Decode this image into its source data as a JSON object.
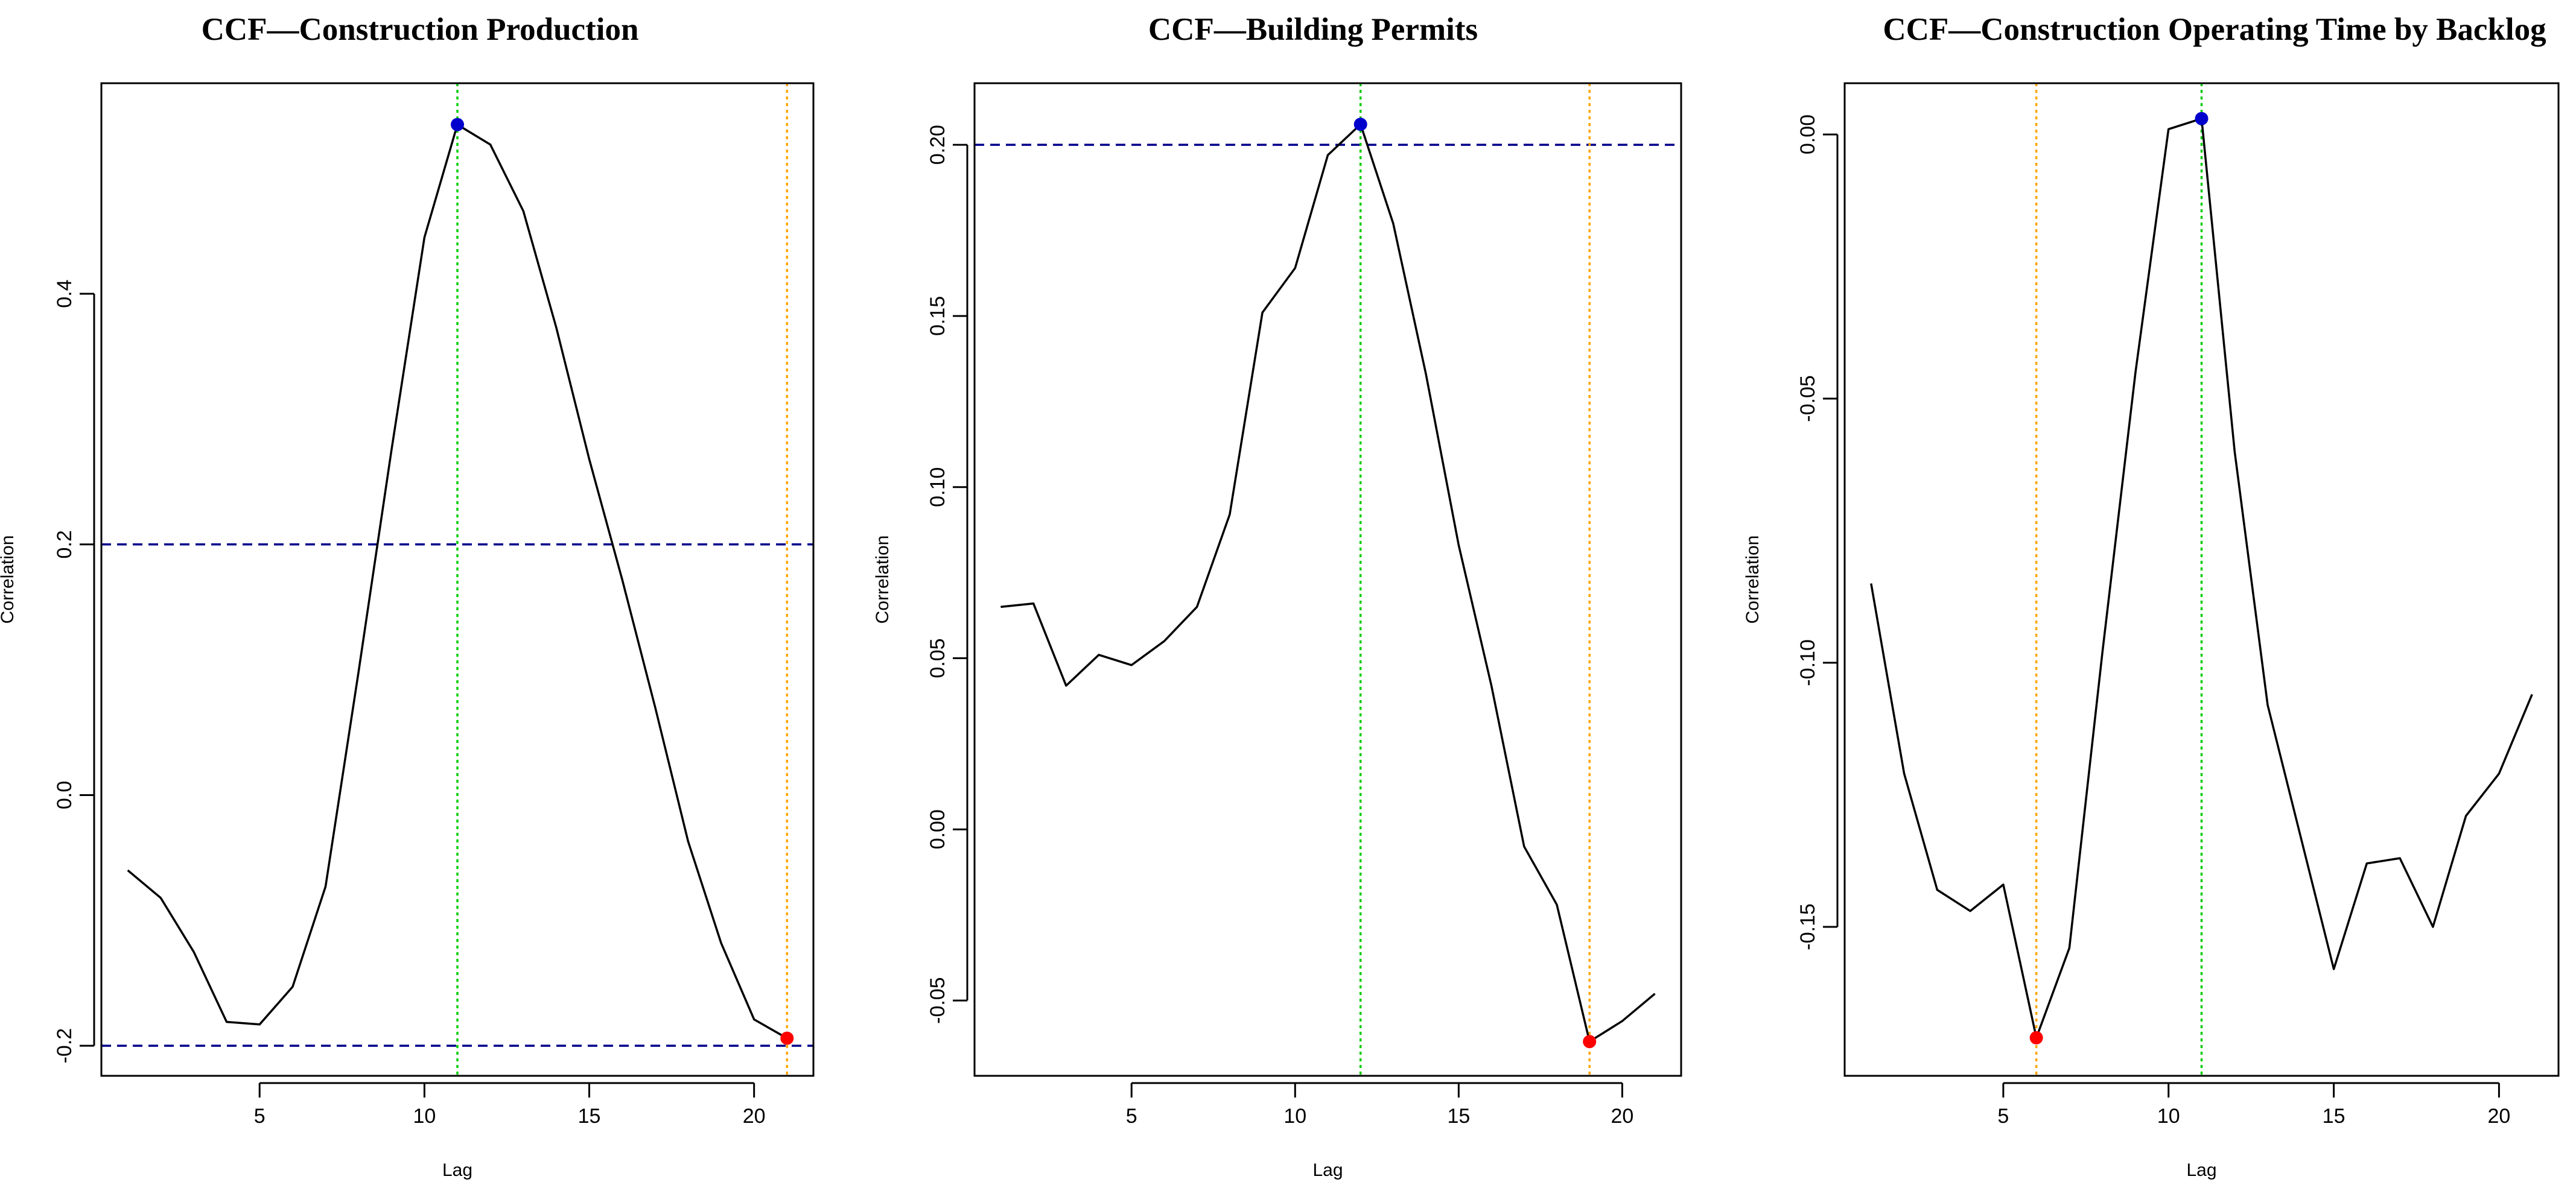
{
  "chart_data": [
    {
      "type": "line",
      "title": "CCF—Construction Production",
      "xlabel": "Lag",
      "ylabel": "Correlation",
      "xlim": [
        0.2,
        21.8
      ],
      "ylim": [
        -0.224,
        0.568
      ],
      "xticks": [
        5,
        10,
        15,
        20
      ],
      "yticks": [
        -0.2,
        0.0,
        0.2,
        0.4
      ],
      "ytick_labels": [
        "-0.2",
        "0.0",
        "0.2",
        "0.4"
      ],
      "x": [
        1,
        2,
        3,
        4,
        5,
        6,
        7,
        8,
        9,
        10,
        11,
        12,
        13,
        14,
        15,
        16,
        17,
        18,
        19,
        20,
        21
      ],
      "values": [
        -0.06,
        -0.082,
        -0.125,
        -0.181,
        -0.183,
        -0.153,
        -0.073,
        0.098,
        0.275,
        0.445,
        0.535,
        0.519,
        0.466,
        0.373,
        0.268,
        0.172,
        0.07,
        -0.037,
        -0.118,
        -0.179,
        -0.194
      ],
      "hlines": [
        0.2,
        -0.2
      ],
      "max_point": {
        "x": 11,
        "y": 0.535
      },
      "min_point": {
        "x": 21,
        "y": -0.194
      },
      "max_lag_line": 11,
      "min_lag_line": 21,
      "colors": {
        "line": "#000000",
        "hline": "#00008B",
        "max": "#0000CD",
        "min": "#FF0000",
        "max_vline": "#00CD00",
        "min_vline": "#FFA500"
      }
    },
    {
      "type": "line",
      "title": "CCF—Building Permits",
      "xlabel": "Lag",
      "ylabel": "Correlation",
      "xlim": [
        0.2,
        21.8
      ],
      "ylim": [
        -0.072,
        0.218
      ],
      "xticks": [
        5,
        10,
        15,
        20
      ],
      "yticks": [
        -0.05,
        0.0,
        0.05,
        0.1,
        0.15,
        0.2
      ],
      "ytick_labels": [
        "-0.05",
        "0.00",
        "0.05",
        "0.10",
        "0.15",
        "0.20"
      ],
      "x": [
        1,
        2,
        3,
        4,
        5,
        6,
        7,
        8,
        9,
        10,
        11,
        12,
        13,
        14,
        15,
        16,
        17,
        18,
        19,
        20,
        21
      ],
      "values": [
        0.065,
        0.066,
        0.042,
        0.051,
        0.048,
        0.055,
        0.065,
        0.092,
        0.151,
        0.164,
        0.197,
        0.206,
        0.177,
        0.133,
        0.083,
        0.042,
        -0.005,
        -0.022,
        -0.062,
        -0.056,
        -0.048
      ],
      "hlines": [
        0.2
      ],
      "max_point": {
        "x": 12,
        "y": 0.206
      },
      "min_point": {
        "x": 19,
        "y": -0.062
      },
      "max_lag_line": 12,
      "min_lag_line": 19,
      "colors": {
        "line": "#000000",
        "hline": "#00008B",
        "max": "#0000CD",
        "min": "#FF0000",
        "max_vline": "#00CD00",
        "min_vline": "#FFA500"
      }
    },
    {
      "type": "line",
      "title": "CCF—Construction Operating Time by Backlog",
      "xlabel": "Lag",
      "ylabel": "Correlation",
      "xlim": [
        0.2,
        21.8
      ],
      "ylim": [
        -0.1782,
        0.0097
      ],
      "xticks": [
        5,
        10,
        15,
        20
      ],
      "yticks": [
        -0.15,
        -0.1,
        -0.05,
        0.0
      ],
      "ytick_labels": [
        "-0.15",
        "-0.10",
        "-0.05",
        "0.00"
      ],
      "x": [
        1,
        2,
        3,
        4,
        5,
        6,
        7,
        8,
        9,
        10,
        11,
        12,
        13,
        14,
        15,
        16,
        17,
        18,
        19,
        20,
        21
      ],
      "values": [
        -0.085,
        -0.121,
        -0.143,
        -0.147,
        -0.142,
        -0.171,
        -0.154,
        -0.098,
        -0.045,
        0.001,
        0.003,
        -0.06,
        -0.108,
        -0.133,
        -0.158,
        -0.138,
        -0.137,
        -0.15,
        -0.129,
        -0.121,
        -0.106
      ],
      "hlines": [],
      "max_point": {
        "x": 11,
        "y": 0.003
      },
      "min_point": {
        "x": 6,
        "y": -0.171
      },
      "max_lag_line": 11,
      "min_lag_line": 6,
      "colors": {
        "line": "#000000",
        "hline": "#00008B",
        "max": "#0000CD",
        "min": "#FF0000",
        "max_vline": "#00CD00",
        "min_vline": "#FFA500"
      }
    }
  ]
}
